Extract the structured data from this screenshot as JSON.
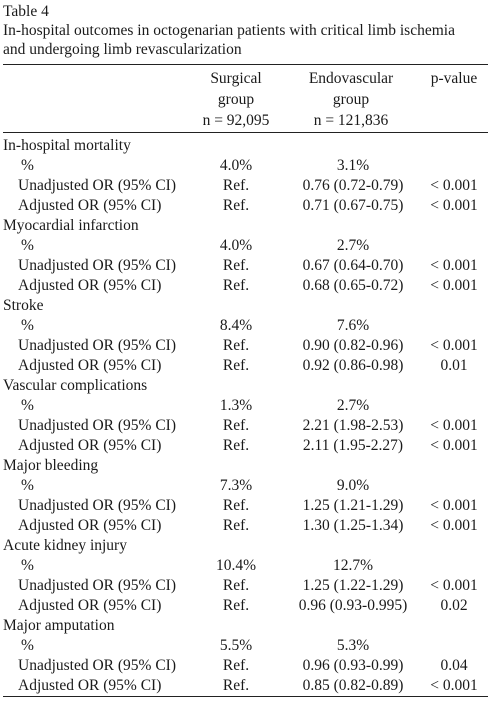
{
  "caption": {
    "label": "Table 4",
    "line1": "In-hospital outcomes in octogenarian patients with critical limb ischemia",
    "line2": "and undergoing limb revascularization"
  },
  "header": {
    "surgical": [
      "Surgical",
      "group",
      "n = 92,095"
    ],
    "endovascular": [
      "Endovascular",
      "group",
      "n = 121,836"
    ],
    "pvalue": "p-value"
  },
  "groups": [
    {
      "title": "In-hospital mortality",
      "rows": [
        {
          "label": "%",
          "surgical": "4.0%",
          "endo": "3.1%",
          "p": ""
        },
        {
          "label": "Unadjusted OR (95% CI)",
          "surgical": "Ref.",
          "endo": "0.76 (0.72-0.79)",
          "p": "< 0.001"
        },
        {
          "label": "Adjusted OR (95% CI)",
          "surgical": "Ref.",
          "endo": "0.71 (0.67-0.75)",
          "p": "< 0.001"
        }
      ]
    },
    {
      "title": "Myocardial infarction",
      "rows": [
        {
          "label": "%",
          "surgical": "4.0%",
          "endo": "2.7%",
          "p": ""
        },
        {
          "label": "Unadjusted OR (95% CI)",
          "surgical": "Ref.",
          "endo": "0.67 (0.64-0.70)",
          "p": "< 0.001"
        },
        {
          "label": "Adjusted OR (95% CI)",
          "surgical": "Ref.",
          "endo": "0.68 (0.65-0.72)",
          "p": "< 0.001"
        }
      ]
    },
    {
      "title": "Stroke",
      "rows": [
        {
          "label": "%",
          "surgical": "8.4%",
          "endo": "7.6%",
          "p": ""
        },
        {
          "label": "Unadjusted OR (95% CI)",
          "surgical": "Ref.",
          "endo": "0.90 (0.82-0.96)",
          "p": "< 0.001"
        },
        {
          "label": "Adjusted OR (95% CI)",
          "surgical": "Ref.",
          "endo": "0.92 (0.86-0.98)",
          "p": "0.01"
        }
      ]
    },
    {
      "title": "Vascular complications",
      "rows": [
        {
          "label": "%",
          "surgical": "1.3%",
          "endo": "2.7%",
          "p": ""
        },
        {
          "label": "Unadjusted OR (95% CI)",
          "surgical": "Ref.",
          "endo": "2.21 (1.98-2.53)",
          "p": "< 0.001"
        },
        {
          "label": "Adjusted OR (95% CI)",
          "surgical": "Ref.",
          "endo": "2.11 (1.95-2.27)",
          "p": "< 0.001"
        }
      ]
    },
    {
      "title": "Major bleeding",
      "rows": [
        {
          "label": "%",
          "surgical": "7.3%",
          "endo": "9.0%",
          "p": ""
        },
        {
          "label": "Unadjusted OR (95% CI)",
          "surgical": "Ref.",
          "endo": "1.25 (1.21-1.29)",
          "p": "< 0.001"
        },
        {
          "label": "Adjusted OR (95% CI)",
          "surgical": "Ref.",
          "endo": "1.30 (1.25-1.34)",
          "p": "< 0.001"
        }
      ]
    },
    {
      "title": "Acute kidney injury",
      "rows": [
        {
          "label": "%",
          "surgical": "10.4%",
          "endo": "12.7%",
          "p": ""
        },
        {
          "label": "Unadjusted OR (95% CI)",
          "surgical": "Ref.",
          "endo": "1.25 (1.22-1.29)",
          "p": "< 0.001"
        },
        {
          "label": "Adjusted OR (95% CI)",
          "surgical": "Ref.",
          "endo": "0.96 (0.93-0.995)",
          "p": "0.02"
        }
      ]
    },
    {
      "title": "Major amputation",
      "rows": [
        {
          "label": "%",
          "surgical": "5.5%",
          "endo": "5.3%",
          "p": ""
        },
        {
          "label": "Unadjusted OR (95% CI)",
          "surgical": "Ref.",
          "endo": "0.96 (0.93-0.99)",
          "p": "0.04"
        },
        {
          "label": "Adjusted OR (95% CI)",
          "surgical": "Ref.",
          "endo": "0.85 (0.82-0.89)",
          "p": "< 0.001"
        }
      ]
    }
  ]
}
